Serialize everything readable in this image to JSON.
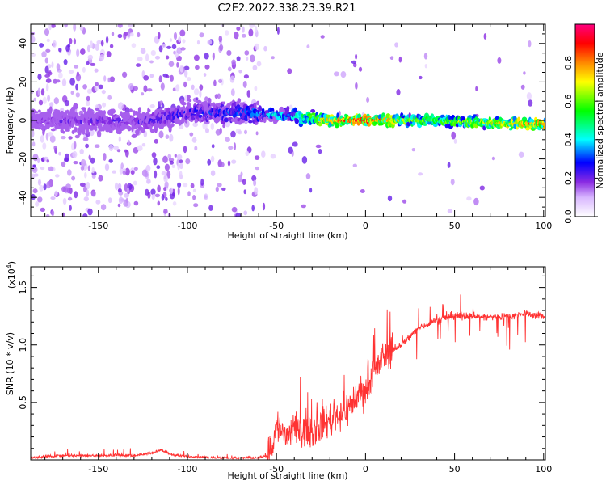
{
  "figure_title": "C2E2.2022.338.23.39.R21",
  "chart_data": [
    {
      "type": "heatmap",
      "xlabel": "Height of straight line (km)",
      "ylabel": "Frequency (Hz)",
      "xlim": [
        -188,
        101
      ],
      "ylim": [
        -50,
        50
      ],
      "xticks": [
        "-150",
        "-100",
        "-50",
        "0",
        "50",
        "100"
      ],
      "yticks": [
        "-40",
        "-20",
        "0",
        "20",
        "40"
      ],
      "grid": false,
      "colorbar": {
        "label": "Normalized spectral amplitude",
        "range": [
          0,
          1
        ],
        "ticks": [
          "0.0",
          "0.2",
          "0.4",
          "0.6",
          "0.8"
        ],
        "colormap": "white-violet-blue-cyan-green-yellow-orange-red-magenta",
        "colors": [
          "#ffffff",
          "#8a2be2",
          "#0000ff",
          "#00ffff",
          "#00ff00",
          "#ffff00",
          "#ff8800",
          "#ff0000",
          "#ff0080"
        ]
      },
      "ridge": {
        "description_points_x": [
          -188,
          -150,
          -125,
          -100,
          -65,
          -40,
          -20,
          0,
          30,
          60,
          100
        ],
        "center_freq": [
          0,
          0,
          -1,
          4,
          4,
          2,
          0,
          0,
          0,
          -1,
          -2
        ],
        "amplitude": [
          0.2,
          0.22,
          0.24,
          0.28,
          0.35,
          0.45,
          0.8,
          0.9,
          0.6,
          0.65,
          0.85
        ]
      }
    },
    {
      "type": "line",
      "xlabel": "Height of straight line (km)",
      "ylabel": "SNR (10 * v/v)",
      "y_scale_label": "(x10",
      "y_scale_exp": "4",
      "y_scale_close": ")",
      "xlim": [
        -188,
        101
      ],
      "ylim": [
        0,
        1.68
      ],
      "xticks": [
        "-150",
        "-100",
        "-50",
        "0",
        "50",
        "100"
      ],
      "yticks": [
        "0.5",
        "1.0",
        "1.5"
      ],
      "grid": false,
      "color": "#ff3333",
      "series": [
        {
          "x": [
            -188,
            -170,
            -150,
            -130,
            -120,
            -115,
            -110,
            -100,
            -80,
            -60,
            -55,
            -52,
            -50,
            -45,
            -40,
            -35,
            -30,
            -25,
            -20,
            -15,
            -10,
            -5,
            0,
            5,
            10,
            20,
            30,
            40,
            50,
            60,
            70,
            80,
            90,
            100
          ],
          "values": [
            0.01,
            0.03,
            0.03,
            0.03,
            0.05,
            0.08,
            0.04,
            0.02,
            0.01,
            0.01,
            0.03,
            0.15,
            0.3,
            0.22,
            0.25,
            0.28,
            0.25,
            0.3,
            0.35,
            0.4,
            0.45,
            0.55,
            0.6,
            0.75,
            0.9,
            1.0,
            1.15,
            1.22,
            1.25,
            1.25,
            1.24,
            1.25,
            1.27,
            1.25
          ]
        }
      ]
    }
  ]
}
